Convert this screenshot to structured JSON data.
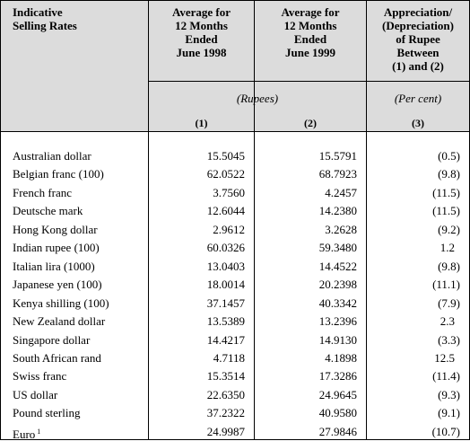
{
  "table": {
    "header": [
      [
        "Indicative",
        "Selling Rates"
      ],
      [
        "Average for",
        "12 Months",
        "Ended",
        "June 1998"
      ],
      [
        "Average for",
        "12 Months",
        "Ended",
        "June 1999"
      ],
      [
        "Appreciation/",
        "(Depreciation)",
        "of Rupee",
        "Between",
        "(1) and (2)"
      ]
    ],
    "units": [
      "(Rupees)",
      "(Per cent)"
    ],
    "column_numbers": [
      "(1)",
      "(2)",
      "(3)"
    ],
    "rows": [
      [
        "Australian dollar",
        "15.5045",
        "15.5791",
        "(0.5)"
      ],
      [
        "Belgian franc (100)",
        "62.0522",
        "68.7923",
        "(9.8)"
      ],
      [
        "French franc",
        "3.7560",
        "4.2457",
        "(11.5)"
      ],
      [
        "Deutsche mark",
        "12.6044",
        "14.2380",
        "(11.5)"
      ],
      [
        "Hong Kong dollar",
        "2.9612",
        "3.2628",
        "(9.2)"
      ],
      [
        "Indian rupee (100)",
        "60.0326",
        "59.3480",
        "1.2"
      ],
      [
        "Italian lira (1000)",
        "13.0403",
        "14.4522",
        "(9.8)"
      ],
      [
        "Japanese yen (100)",
        "18.0014",
        "20.2398",
        "(11.1)"
      ],
      [
        "Kenya shilling (100)",
        "37.1457",
        "40.3342",
        "(7.9)"
      ],
      [
        "New Zealand dollar",
        "13.5389",
        "13.2396",
        "2.3"
      ],
      [
        "Singapore dollar",
        "14.4217",
        "14.9130",
        "(3.3)"
      ],
      [
        "South African rand",
        "4.7118",
        "4.1898",
        "12.5"
      ],
      [
        "Swiss franc",
        "15.3514",
        "17.3286",
        "(11.4)"
      ],
      [
        "US dollar",
        "22.6350",
        "24.9645",
        "(9.3)"
      ],
      [
        "Pound sterling",
        "37.2322",
        "40.9580",
        "(9.1)"
      ],
      [
        "Euro",
        "24.9987",
        "27.9846",
        "(10.7)"
      ]
    ],
    "footnote_mark": "1"
  }
}
